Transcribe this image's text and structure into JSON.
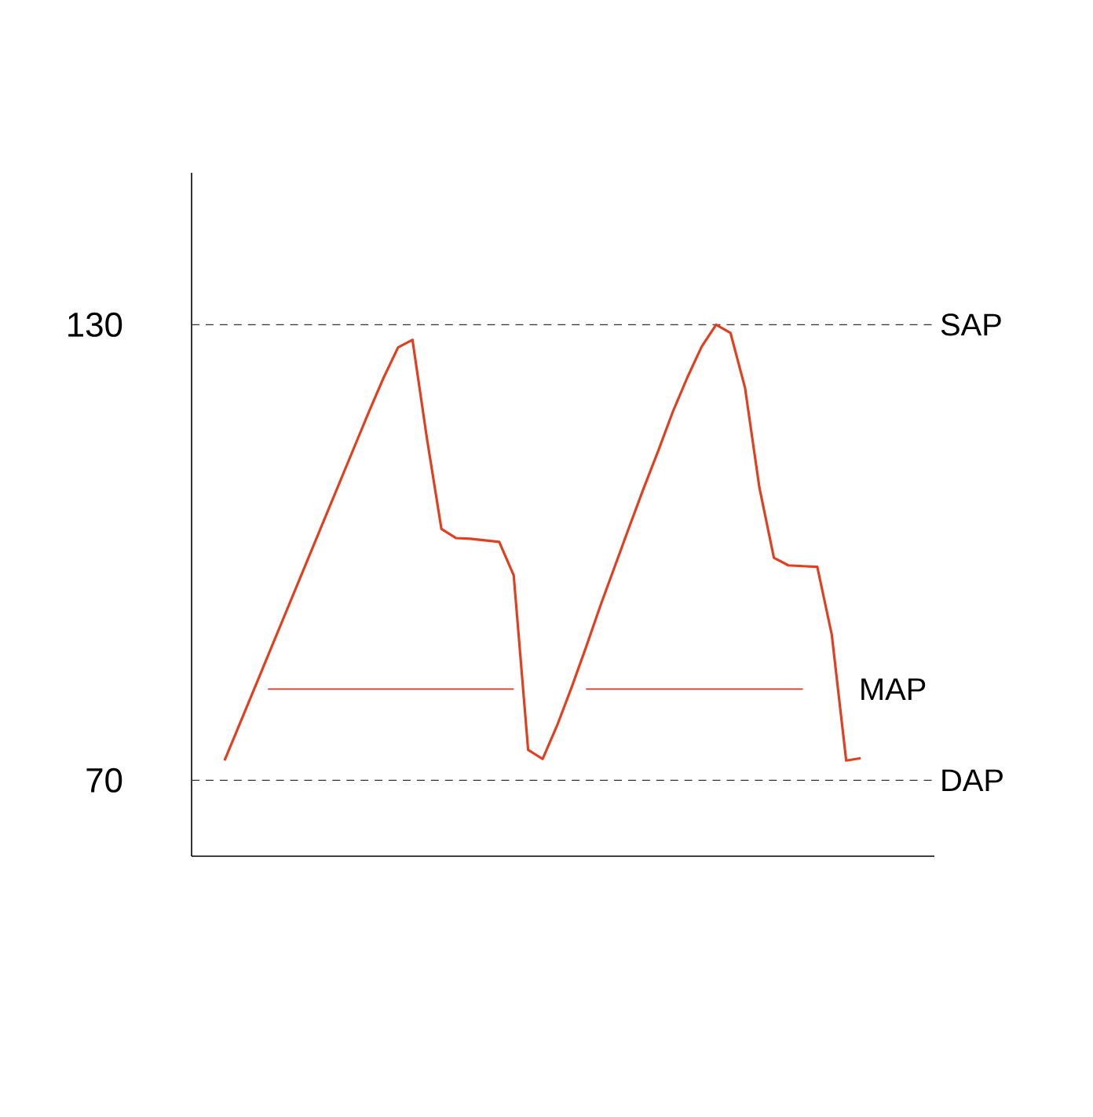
{
  "chart_data": {
    "type": "line",
    "categories": [
      null,
      null,
      null,
      null,
      null,
      null,
      null,
      null,
      null,
      null,
      null,
      null,
      null,
      null,
      null,
      null,
      null,
      null,
      null,
      null,
      null,
      null,
      null,
      null,
      null,
      null,
      null,
      null,
      null,
      null,
      null,
      null,
      null,
      null,
      null,
      null,
      null,
      null,
      null,
      null,
      null,
      null,
      null,
      null,
      null
    ],
    "ylim": [
      60,
      150
    ],
    "yticks": [
      70,
      130
    ],
    "tick_labels": "y",
    "grid": false,
    "legend": false,
    "marker": "none",
    "series": [
      {
        "values": [
          72.6,
          77.2,
          81.8,
          86.4,
          91.0,
          95.6,
          100.2,
          104.8,
          109.4,
          114.0,
          118.6,
          123.0,
          127.0,
          128.0,
          115.0,
          103.1,
          101.9,
          101.8,
          101.6,
          101.4,
          97.0,
          74.0,
          72.8,
          77.2,
          82.2,
          87.5,
          93.0,
          98.2,
          103.4,
          108.5,
          113.4,
          118.5,
          123.0,
          127.1,
          130,
          128.9,
          121.7,
          108.5,
          99.3,
          98.3,
          98.2,
          98.1,
          89.2,
          72.6,
          72.9
        ],
        "color": "#e0401f"
      },
      {
        "name": "MAP",
        "values": [
          null,
          null,
          null,
          82,
          82,
          82,
          82,
          82,
          82,
          82,
          82,
          82,
          82,
          82,
          82,
          82,
          82,
          82,
          82,
          82,
          82,
          null,
          null,
          null,
          null,
          82,
          82,
          82,
          82,
          82,
          82,
          82,
          82,
          82,
          82,
          82,
          82,
          82,
          82,
          82,
          82,
          null,
          null,
          null,
          null
        ],
        "color": "#d9503c"
      }
    ],
    "ref_lines": [
      {
        "axis": "y",
        "value": 130,
        "label": "SAP",
        "color": "#333333",
        "line_style": "dashed"
      },
      {
        "axis": "y",
        "value": 70,
        "label": "DAP",
        "color": "#333333",
        "line_style": "dashed"
      }
    ]
  }
}
